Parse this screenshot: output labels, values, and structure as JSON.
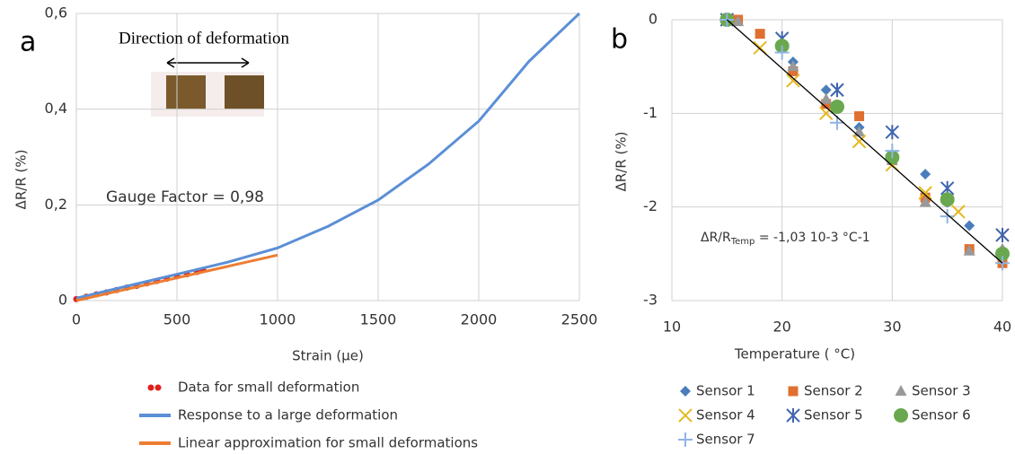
{
  "chart_data": [
    {
      "type": "line",
      "title": "a",
      "xlabel": "Strain (µe)",
      "ylabel": "ΔR/R (%)",
      "xlim": [
        0,
        2500
      ],
      "xticks": [
        0,
        500,
        1000,
        1500,
        2000,
        2500
      ],
      "ylim": [
        0,
        0.6
      ],
      "yticks": [
        0,
        {
          "value": 0.2,
          "label": "0,2"
        },
        {
          "value": 0.4,
          "label": "0,4"
        },
        {
          "value": 0.6,
          "label": "0,6"
        }
      ],
      "grid": true,
      "annotations": [
        "Direction  of deformation",
        "Gauge Factor =  0,98"
      ],
      "series": [
        {
          "name": "Data for small deformation",
          "color": "#e0201b",
          "style": "markers",
          "x": [
            0,
            50,
            100,
            150,
            200,
            250,
            300,
            350,
            400,
            450,
            500,
            550,
            600,
            630
          ],
          "values": [
            0.003,
            0.008,
            0.013,
            0.017,
            0.022,
            0.027,
            0.031,
            0.036,
            0.041,
            0.046,
            0.051,
            0.055,
            0.06,
            0.064
          ]
        },
        {
          "name": "Response to a large deformation",
          "color": "#5b8fd6",
          "style": "line",
          "x": [
            0,
            250,
            500,
            750,
            1000,
            1250,
            1500,
            1750,
            2000,
            2250,
            2500
          ],
          "values": [
            0.005,
            0.03,
            0.055,
            0.08,
            0.11,
            0.155,
            0.21,
            0.285,
            0.375,
            0.5,
            0.6
          ]
        },
        {
          "name": "Linear approximation for small deformations",
          "color": "#ed7d31",
          "style": "line",
          "x": [
            0,
            1000
          ],
          "values": [
            0,
            0.095
          ]
        }
      ]
    },
    {
      "type": "scatter",
      "title": "b",
      "xlabel": "Temperature ( °C)",
      "ylabel": "ΔR/R (%)",
      "xlim": [
        10,
        40
      ],
      "xticks": [
        10,
        20,
        30,
        40
      ],
      "ylim": [
        -3,
        0
      ],
      "yticks": [
        0,
        -1,
        -2,
        -3
      ],
      "grid": true,
      "annotation": {
        "main": "ΔR/R",
        "sub": "Temp",
        "rest": " = -1,03 10-3 °C-1"
      },
      "trendline": {
        "color": "#000000",
        "x": [
          15,
          40
        ],
        "values": [
          0,
          -2.6
        ]
      },
      "series": [
        {
          "name": "Sensor 1",
          "color": "#4a7ebb",
          "marker": "diamond",
          "x": [
            15,
            20,
            21,
            24,
            25,
            27,
            30,
            33,
            35,
            37,
            40
          ],
          "values": [
            0,
            -0.3,
            -0.45,
            -0.75,
            -0.95,
            -1.15,
            -1.45,
            -1.65,
            -1.95,
            -2.2,
            -2.5
          ]
        },
        {
          "name": "Sensor 2",
          "color": "#e07030",
          "marker": "square",
          "x": [
            16,
            18,
            21,
            24,
            27,
            30,
            33,
            37,
            40
          ],
          "values": [
            0,
            -0.15,
            -0.55,
            -0.9,
            -1.03,
            -1.5,
            -1.9,
            -2.45,
            -2.6
          ]
        },
        {
          "name": "Sensor 3",
          "color": "#999999",
          "marker": "triangle",
          "x": [
            15,
            16,
            21,
            24,
            27,
            30,
            33,
            37,
            40
          ],
          "values": [
            0,
            -0.02,
            -0.5,
            -0.85,
            -1.2,
            -1.5,
            -1.95,
            -2.47,
            -2.45
          ]
        },
        {
          "name": "Sensor 4",
          "color": "#e6b820",
          "marker": "x",
          "x": [
            15,
            18,
            21,
            24,
            27,
            30,
            33,
            36,
            40
          ],
          "values": [
            0,
            -0.3,
            -0.65,
            -1.0,
            -1.3,
            -1.55,
            -1.85,
            -2.05,
            -2.3
          ]
        },
        {
          "name": "Sensor 5",
          "color": "#3f65b0",
          "marker": "star",
          "x": [
            15,
            20,
            25,
            30,
            35,
            40
          ],
          "values": [
            0,
            -0.2,
            -0.75,
            -1.2,
            -1.8,
            -2.3
          ]
        },
        {
          "name": "Sensor 6",
          "color": "#6aa84f",
          "marker": "circle",
          "x": [
            15,
            20,
            25,
            30,
            35,
            40
          ],
          "values": [
            0,
            -0.28,
            -0.93,
            -1.47,
            -1.92,
            -2.5
          ]
        },
        {
          "name": "Sensor 7",
          "color": "#8fb4e3",
          "marker": "plus",
          "x": [
            15,
            20,
            25,
            30,
            35,
            40
          ],
          "values": [
            0,
            -0.35,
            -1.1,
            -1.4,
            -2.1,
            -2.6
          ]
        }
      ]
    }
  ]
}
